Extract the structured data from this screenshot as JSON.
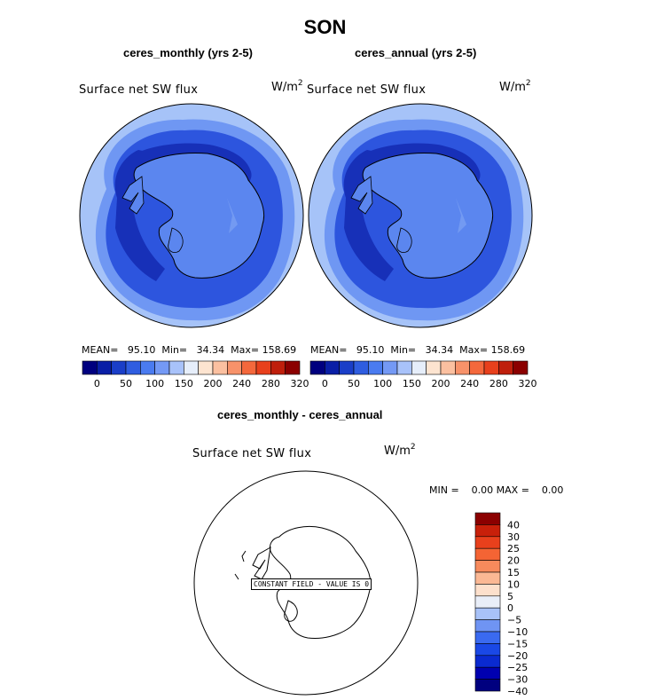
{
  "figure": {
    "title": "SON"
  },
  "panels": [
    {
      "title": "ceres_monthly (yrs 2-5)",
      "variable": "Surface net SW flux",
      "units_base": "W/m",
      "units_exp": "2",
      "stats": {
        "mean": "MEAN=   95.10",
        "min": "Min=   34.34",
        "max": "Max= 158.69"
      }
    },
    {
      "title": "ceres_annual (yrs 2-5)",
      "variable": "Surface net SW flux",
      "units_base": "W/m",
      "units_exp": "2",
      "stats": {
        "mean": "MEAN=   95.10",
        "min": "Min=   34.34",
        "max": "Max= 158.69"
      }
    },
    {
      "title": "ceres_monthly - ceres_annual",
      "variable": "Surface net SW flux",
      "units_base": "W/m",
      "units_exp": "2",
      "stats": {
        "minmax": "MIN =    0.00 MAX =    0.00"
      },
      "annotation": "CONSTANT FIELD - VALUE IS 0"
    }
  ],
  "colorbar_main": {
    "colors": [
      "#00007f",
      "#0a1fa6",
      "#1a3ec8",
      "#2f5de0",
      "#4a7bf0",
      "#7499f5",
      "#a8c2fa",
      "#e6eefa",
      "#fde4d0",
      "#fbc0a0",
      "#f7926a",
      "#f4683c",
      "#e8401c",
      "#bf1f0c",
      "#8b0000"
    ],
    "labels": [
      "0",
      "50",
      "100",
      "150",
      "200",
      "240",
      "280",
      "320"
    ]
  },
  "colorbar_diff": {
    "colors": [
      "#00007f",
      "#0000b0",
      "#0a2ad0",
      "#1a48e6",
      "#3a6af0",
      "#6f94f3",
      "#a8c2f8",
      "#e9eef8",
      "#fde0cc",
      "#fbb894",
      "#f78a5c",
      "#f46434",
      "#e8401c",
      "#c8200a",
      "#8b0000"
    ],
    "labels": [
      "40",
      "30",
      "25",
      "20",
      "15",
      "10",
      "5",
      "0",
      "−5",
      "−10",
      "−15",
      "−20",
      "−25",
      "−30",
      "−40"
    ]
  },
  "colors": {
    "ocean_outer": "#a6c3f8",
    "band_mid": "#6f97f3",
    "band_inner": "#2d55de",
    "band_deep": "#1730b8",
    "ice_sheet": "#5b86ef",
    "coast": "#000000"
  }
}
